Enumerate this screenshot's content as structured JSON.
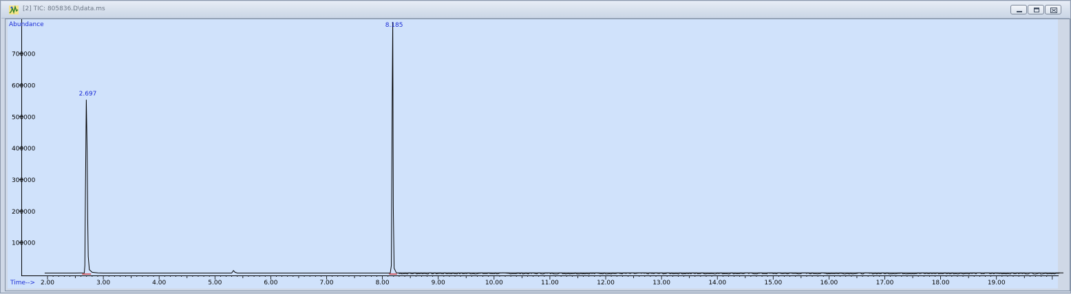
{
  "window": {
    "title": "[2] TIC: 805836.D\\data.ms",
    "controls": [
      "minimize",
      "restore",
      "close"
    ],
    "icon": "chromatogram-app-icon"
  },
  "chart_data": {
    "type": "line",
    "ylabel": "Abundance",
    "xlabel": "Time-->",
    "xlim": [
      1.95,
      20.2
    ],
    "ylim": [
      0,
      860000
    ],
    "x_ticks": [
      "2.00",
      "3.00",
      "4.00",
      "5.00",
      "6.00",
      "7.00",
      "8.00",
      "9.00",
      "10.00",
      "11.00",
      "12.00",
      "13.00",
      "14.00",
      "15.00",
      "16.00",
      "17.00",
      "18.00",
      "19.00"
    ],
    "y_ticks": [
      "100000",
      "200000",
      "300000",
      "400000",
      "500000",
      "600000",
      "700000"
    ],
    "series": [
      {
        "points": [
          [
            1.95,
            3500
          ],
          [
            2.5,
            3500
          ],
          [
            2.66,
            4000
          ],
          [
            2.67,
            30000
          ],
          [
            2.68,
            280000
          ],
          [
            2.695,
            595000
          ],
          [
            2.7,
            535000
          ],
          [
            2.71,
            420000
          ],
          [
            2.72,
            190000
          ],
          [
            2.73,
            60000
          ],
          [
            2.75,
            15000
          ],
          [
            2.8,
            6000
          ],
          [
            2.9,
            4000
          ],
          [
            3.0,
            3500
          ],
          [
            5.3,
            3500
          ],
          [
            5.33,
            12000
          ],
          [
            5.36,
            6000
          ],
          [
            5.4,
            3500
          ],
          [
            8.14,
            3500
          ],
          [
            8.16,
            30000
          ],
          [
            8.175,
            600000
          ],
          [
            8.185,
            860000
          ],
          [
            8.195,
            230000
          ],
          [
            8.21,
            20000
          ],
          [
            8.25,
            4000
          ],
          [
            20.2,
            4000
          ]
        ]
      }
    ],
    "annotations": [
      {
        "x": 2.697,
        "y": 595000,
        "text": "2.697"
      },
      {
        "x": 8.185,
        "y": 860000,
        "text": "8.185"
      }
    ],
    "colors": {
      "trace": "#000000",
      "labels": "#1a2bd6",
      "background": "#d0e2fb",
      "baseline_marker": "#d01010"
    }
  }
}
